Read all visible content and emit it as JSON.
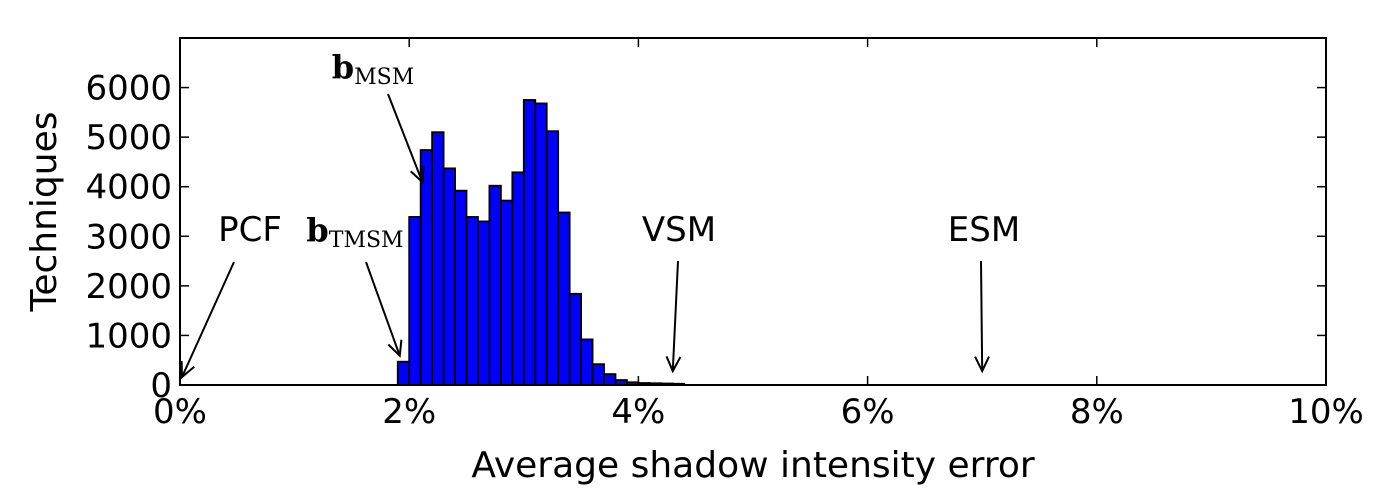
{
  "chart_data": {
    "type": "bar",
    "title": "",
    "xlabel": "Average shadow intensity error",
    "ylabel": "Techniques",
    "xlim": [
      0,
      10
    ],
    "ylim": [
      0,
      7000
    ],
    "x_unit": "%",
    "x_ticks": [
      "0%",
      "2%",
      "4%",
      "6%",
      "8%",
      "10%"
    ],
    "y_ticks": [
      "0",
      "1000",
      "2000",
      "3000",
      "4000",
      "5000",
      "6000"
    ],
    "bar_color": "#0000ff",
    "grid": false,
    "bins": {
      "start": 1.9,
      "width": 0.1,
      "counts": [
        470,
        3390,
        4740,
        5100,
        4370,
        3920,
        3390,
        3300,
        4020,
        3720,
        4290,
        5750,
        5680,
        5120,
        3480,
        1840,
        920,
        420,
        220,
        100,
        55,
        40,
        35,
        30,
        25
      ]
    },
    "annotations": [
      {
        "text": "PCF",
        "x": 0.0,
        "y": 0
      },
      {
        "text": "b",
        "subscript": "TMSM",
        "x": 1.9,
        "y": 470
      },
      {
        "text": "b",
        "subscript": "MSM",
        "x": 2.15,
        "y": 4900
      },
      {
        "text": "VSM",
        "x": 4.3,
        "y": 120
      },
      {
        "text": "ESM",
        "x": 7.0,
        "y": 120
      }
    ]
  }
}
